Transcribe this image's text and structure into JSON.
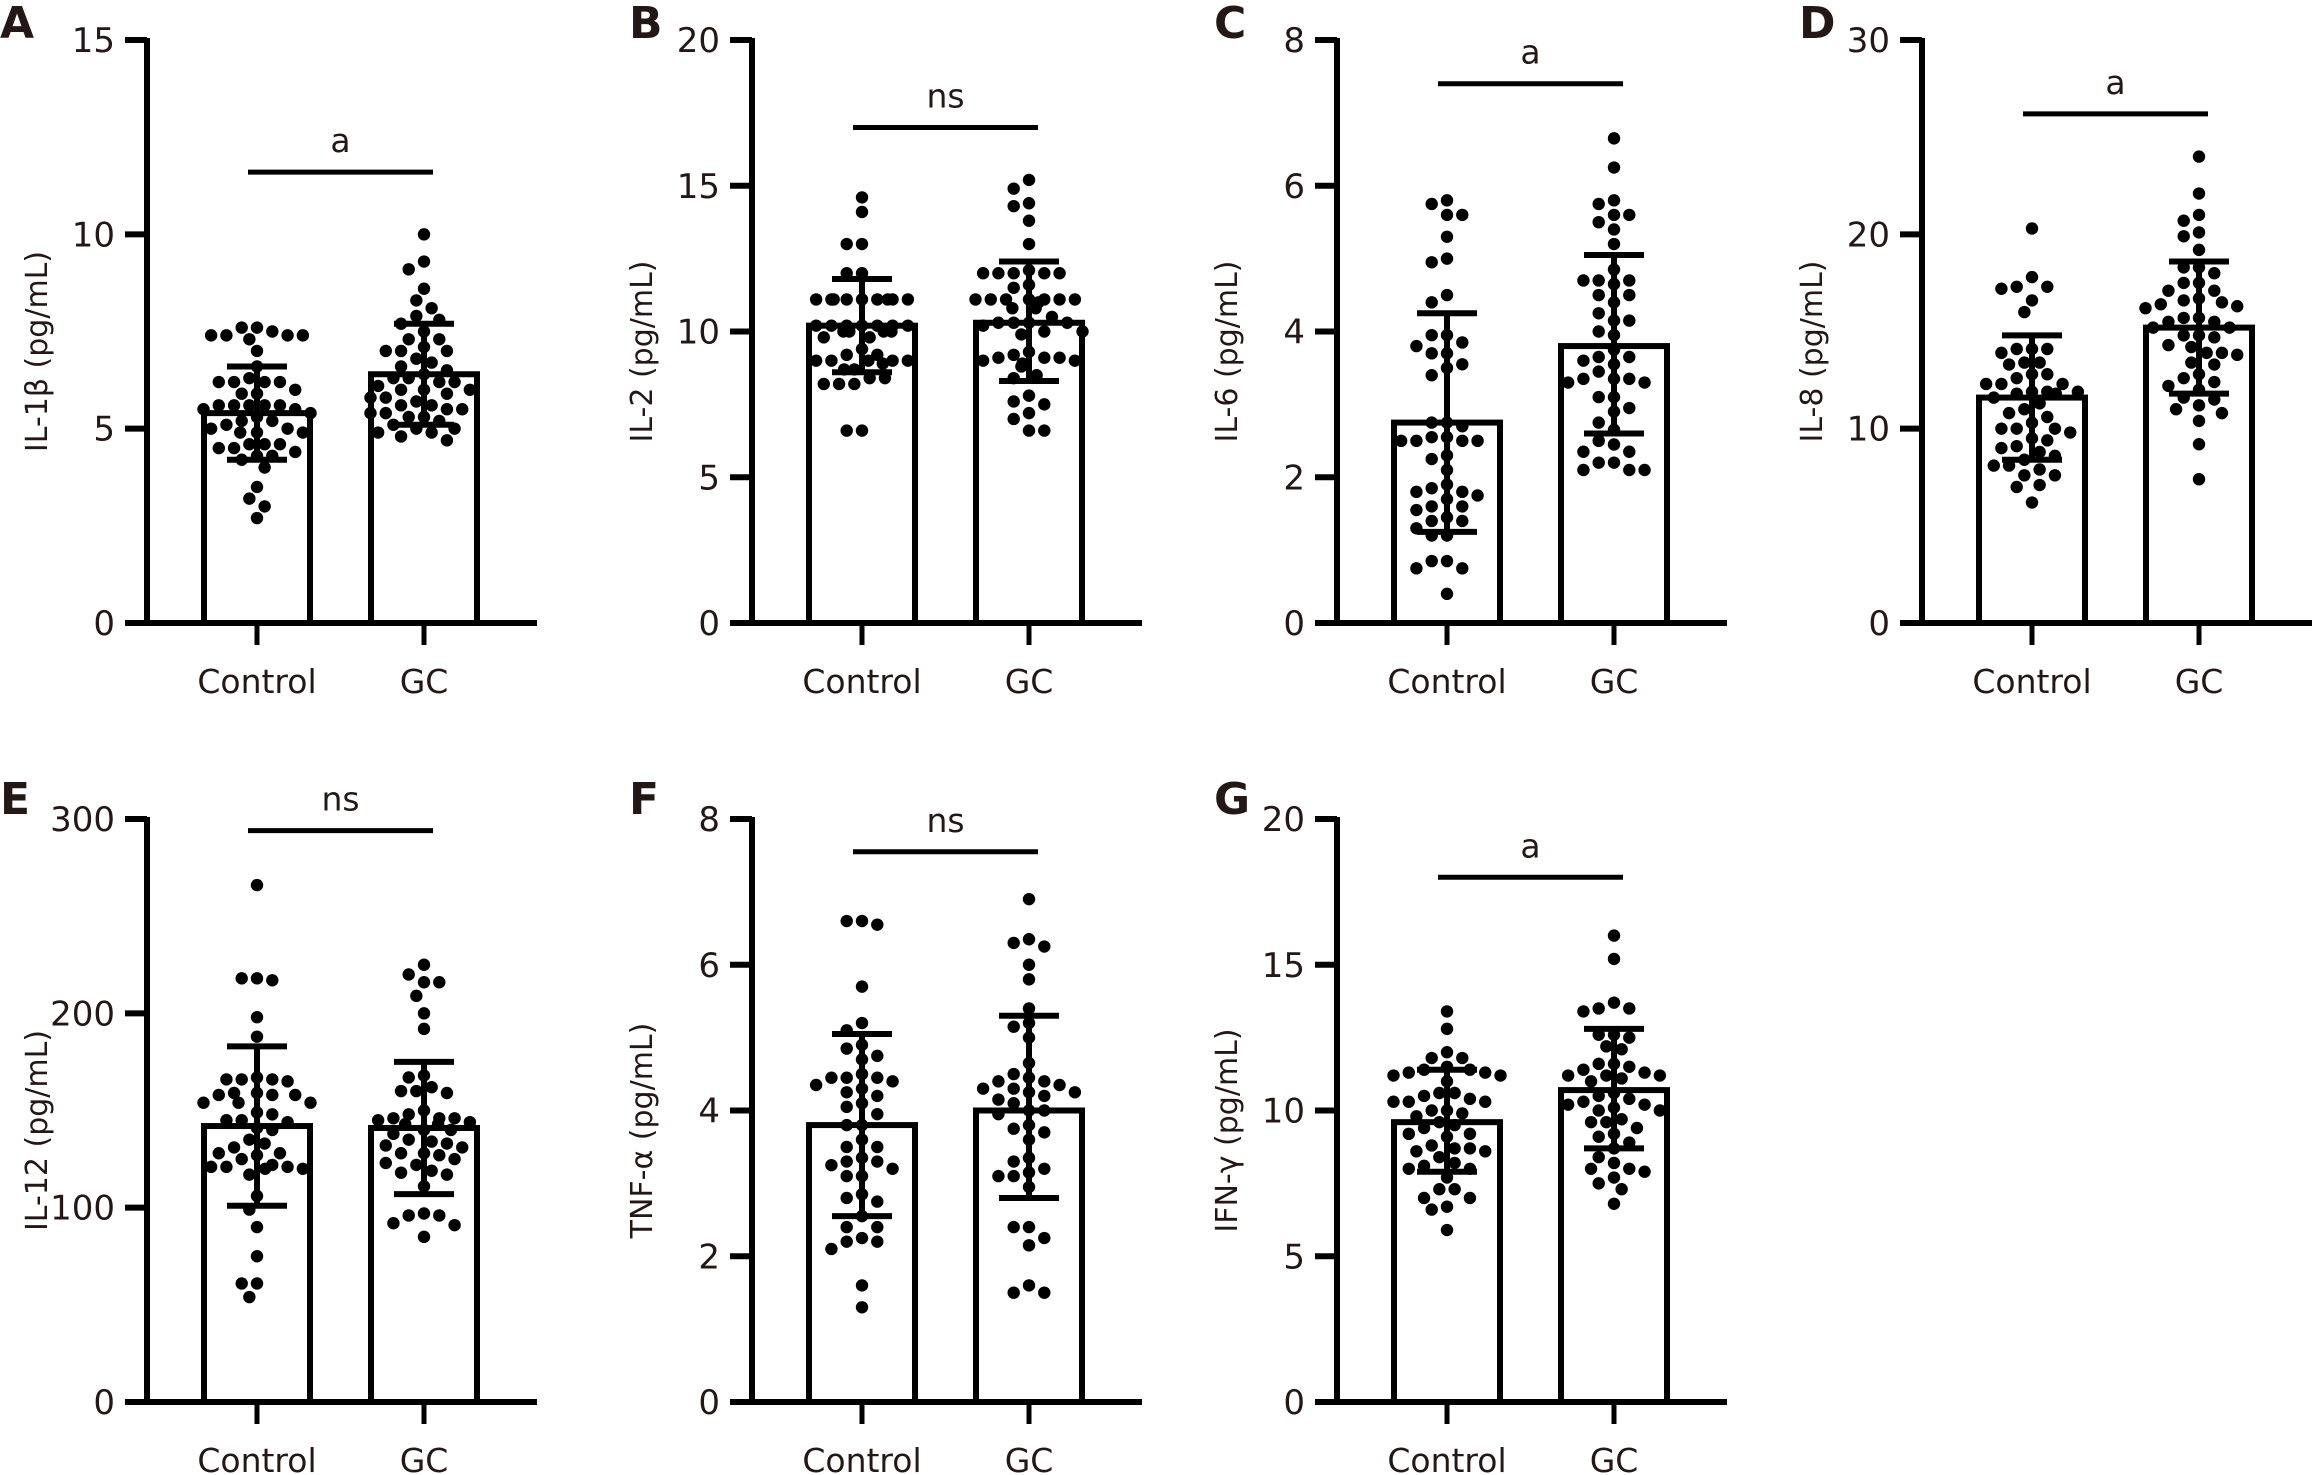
{
  "figure": {
    "panels_layout": "2 rows: A-D top, E-G bottom"
  },
  "chart_data": [
    {
      "panel": "A",
      "type": "bar",
      "subtype": "bar with scatter and SD error bars",
      "ylabel": "IL-1β (pg/mL)",
      "xlabel": "",
      "categories": [
        "Control",
        "GC"
      ],
      "ylim": [
        0,
        15
      ],
      "yticks": [
        "0",
        "5",
        "10",
        "15"
      ],
      "ytick_values": [
        0,
        5,
        10,
        15
      ],
      "significance": "a",
      "significance_level": 11.6,
      "series": [
        {
          "name": "Control",
          "mean": 5.4,
          "sd_low": 4.2,
          "sd_high": 6.6,
          "points": [
            7.6,
            7.5,
            7.6,
            7.4,
            7.4,
            7.3,
            7.4,
            7.4,
            7.0,
            6.6,
            6.2,
            6.3,
            6.2,
            6.2,
            6.2,
            5.9,
            6.0,
            5.9,
            5.6,
            5.6,
            5.6,
            5.5,
            5.6,
            5.5,
            5.4,
            5.6,
            5.3,
            5.2,
            5.1,
            4.9,
            5.0,
            4.9,
            5.0,
            4.9,
            5.2,
            4.6,
            4.6,
            4.5,
            4.5,
            4.4,
            4.6,
            4.3,
            4.2,
            4.3,
            4.0,
            3.5,
            3.2,
            3.0,
            2.7
          ]
        },
        {
          "name": "GC",
          "mean": 6.4,
          "sd_low": 5.1,
          "sd_high": 7.7,
          "points": [
            10.0,
            9.3,
            9.1,
            8.6,
            8.3,
            8.1,
            7.9,
            7.8,
            7.7,
            7.5,
            7.3,
            7.3,
            7.1,
            7.0,
            7.0,
            7.0,
            6.8,
            6.7,
            6.6,
            6.5,
            6.4,
            6.3,
            6.2,
            6.2,
            6.3,
            6.1,
            6.0,
            6.0,
            6.0,
            5.9,
            5.8,
            5.8,
            5.7,
            5.6,
            5.6,
            5.5,
            5.5,
            5.4,
            5.4,
            5.3,
            5.3,
            5.2,
            5.1,
            5.0,
            5.0,
            4.9,
            4.9,
            4.8,
            4.7
          ]
        }
      ]
    },
    {
      "panel": "B",
      "type": "bar",
      "subtype": "bar with scatter and SD error bars",
      "ylabel": "IL-2 (pg/mL)",
      "xlabel": "",
      "categories": [
        "Control",
        "GC"
      ],
      "ylim": [
        0,
        20
      ],
      "yticks": [
        "0",
        "5",
        "10",
        "15",
        "20"
      ],
      "ytick_values": [
        0,
        5,
        10,
        15,
        20
      ],
      "significance": "ns",
      "significance_level": 17.0,
      "series": [
        {
          "name": "Control",
          "mean": 10.2,
          "sd_low": 8.6,
          "sd_high": 11.8,
          "points": [
            14.6,
            14.1,
            13.0,
            13.0,
            12.0,
            12.0,
            11.1,
            11.1,
            11.1,
            11.1,
            11.1,
            11.1,
            11.1,
            11.1,
            11.1,
            10.2,
            10.2,
            10.2,
            10.2,
            10.2,
            10.2,
            10.0,
            10.0,
            10.0,
            10.0,
            10.2,
            9.8,
            9.8,
            9.4,
            9.2,
            9.2,
            9.0,
            9.0,
            9.0,
            9.0,
            9.0,
            8.9,
            8.7,
            8.7,
            8.4,
            8.4,
            8.2,
            8.2,
            8.2,
            6.6,
            6.6
          ]
        },
        {
          "name": "GC",
          "mean": 10.3,
          "sd_low": 8.3,
          "sd_high": 12.4,
          "points": [
            15.2,
            14.9,
            14.4,
            14.3,
            13.8,
            13.0,
            12.1,
            12.0,
            12.0,
            12.0,
            12.0,
            12.0,
            11.6,
            11.5,
            11.1,
            11.1,
            11.1,
            11.1,
            11.0,
            11.1,
            11.1,
            11.1,
            10.8,
            10.8,
            10.5,
            10.3,
            10.3,
            10.3,
            10.3,
            10.2,
            10.0,
            10.0,
            9.9,
            9.3,
            9.2,
            9.1,
            9.1,
            9.1,
            9.0,
            9.0,
            8.9,
            8.8,
            8.5,
            8.4,
            7.8,
            7.6,
            7.5,
            7.2,
            7.0,
            6.6,
            6.6
          ]
        }
      ]
    },
    {
      "panel": "C",
      "type": "bar",
      "subtype": "bar with scatter and SD error bars",
      "ylabel": "IL-6 (pg/mL)",
      "xlabel": "",
      "categories": [
        "Control",
        "GC"
      ],
      "ylim": [
        0,
        8
      ],
      "yticks": [
        "0",
        "2",
        "4",
        "6",
        "8"
      ],
      "ytick_values": [
        0,
        2,
        4,
        6,
        8
      ],
      "significance": "a",
      "significance_level": 7.4,
      "series": [
        {
          "name": "Control",
          "mean": 2.75,
          "sd_low": 1.25,
          "sd_high": 4.25,
          "points": [
            5.8,
            5.75,
            5.6,
            5.6,
            5.3,
            5.0,
            4.95,
            4.5,
            4.4,
            3.95,
            3.95,
            3.85,
            3.8,
            3.7,
            3.7,
            3.55,
            3.5,
            3.4,
            2.75,
            2.75,
            2.7,
            2.55,
            2.5,
            2.5,
            2.5,
            2.55,
            2.5,
            2.3,
            2.25,
            2.1,
            1.9,
            1.85,
            1.8,
            1.8,
            1.75,
            1.7,
            1.6,
            1.6,
            1.55,
            1.45,
            1.4,
            1.4,
            1.3,
            1.2,
            1.2,
            0.85,
            0.85,
            0.75,
            0.75,
            0.4
          ]
        },
        {
          "name": "GC",
          "mean": 3.8,
          "sd_low": 2.6,
          "sd_high": 5.05,
          "points": [
            6.65,
            6.25,
            5.8,
            5.75,
            5.6,
            5.6,
            5.5,
            5.4,
            5.2,
            4.85,
            4.7,
            4.7,
            4.7,
            4.65,
            4.5,
            4.5,
            4.4,
            4.25,
            4.15,
            4.15,
            4.0,
            3.95,
            3.75,
            3.65,
            3.65,
            3.6,
            3.55,
            3.45,
            3.35,
            3.35,
            3.35,
            3.3,
            3.3,
            3.1,
            3.1,
            2.95,
            2.9,
            2.75,
            2.65,
            2.5,
            2.45,
            2.35,
            2.35,
            2.2,
            2.2,
            2.1,
            2.1,
            2.1
          ]
        }
      ]
    },
    {
      "panel": "D",
      "type": "bar",
      "subtype": "bar with scatter and SD error bars",
      "ylabel": "IL-8 (pg/mL)",
      "xlabel": "",
      "categories": [
        "Control",
        "GC"
      ],
      "ylim": [
        0,
        30
      ],
      "yticks": [
        "0",
        "10",
        "20",
        "30"
      ],
      "ytick_values": [
        0,
        10,
        20,
        30
      ],
      "significance": "a",
      "significance_level": 26.2,
      "series": [
        {
          "name": "Control",
          "mean": 11.6,
          "sd_low": 8.4,
          "sd_high": 14.8,
          "points": [
            20.3,
            17.8,
            17.3,
            17.2,
            17.3,
            16.6,
            16.0,
            14.1,
            14.1,
            14.1,
            13.9,
            13.4,
            13.3,
            13.4,
            12.8,
            12.8,
            12.6,
            12.3,
            12.3,
            12.3,
            11.9,
            11.9,
            11.9,
            11.8,
            11.8,
            11.6,
            11.3,
            11.0,
            10.8,
            10.6,
            10.3,
            10.0,
            10.0,
            10.0,
            9.8,
            9.5,
            9.4,
            9.1,
            9.0,
            8.8,
            8.6,
            8.4,
            8.1,
            8.1,
            7.9,
            7.6,
            7.6,
            7.1,
            7.0,
            6.2
          ]
        },
        {
          "name": "GC",
          "mean": 15.2,
          "sd_low": 11.8,
          "sd_high": 18.6,
          "points": [
            24.0,
            22.1,
            21.0,
            20.7,
            20.1,
            19.9,
            19.2,
            18.3,
            18.3,
            18.0,
            17.5,
            17.5,
            17.1,
            17.1,
            16.7,
            16.6,
            16.5,
            16.4,
            16.3,
            16.2,
            15.7,
            15.7,
            15.5,
            15.5,
            15.2,
            15.2,
            14.8,
            14.8,
            14.7,
            14.3,
            14.2,
            13.9,
            13.9,
            13.8,
            13.4,
            13.3,
            12.8,
            12.6,
            12.4,
            12.2,
            12.0,
            11.6,
            11.5,
            11.2,
            11.0,
            10.8,
            10.4,
            9.2,
            7.4
          ]
        }
      ]
    },
    {
      "panel": "E",
      "type": "bar",
      "subtype": "bar with scatter and SD error bars",
      "ylabel": "IL-12 (pg/mL)",
      "xlabel": "",
      "categories": [
        "Control",
        "GC"
      ],
      "ylim": [
        0,
        300
      ],
      "yticks": [
        "0",
        "100",
        "200",
        "300"
      ],
      "ytick_values": [
        0,
        100,
        200,
        300
      ],
      "significance": "ns",
      "significance_level": 294,
      "series": [
        {
          "name": "Control",
          "mean": 142,
          "sd_low": 101,
          "sd_high": 183,
          "points": [
            266,
            218,
            217,
            218,
            198,
            188,
            166,
            166,
            167,
            166,
            165,
            158,
            158,
            159,
            159,
            158,
            154,
            154,
            154,
            149,
            148,
            145,
            145,
            144,
            141,
            140,
            135,
            133,
            131,
            128,
            127,
            128,
            125,
            122,
            121,
            120,
            121,
            121,
            120,
            117,
            106,
            99,
            90,
            75,
            61,
            61,
            54
          ]
        },
        {
          "name": "GC",
          "mean": 141,
          "sd_low": 107,
          "sd_high": 175,
          "points": [
            225,
            220,
            216,
            216,
            209,
            200,
            192,
            168,
            167,
            162,
            160,
            159,
            160,
            150,
            148,
            146,
            146,
            145,
            146,
            143,
            144,
            143,
            140,
            140,
            138,
            135,
            134,
            133,
            132,
            131,
            128,
            128,
            127,
            125,
            123,
            122,
            119,
            118,
            117,
            111,
            97,
            96,
            96,
            92,
            91,
            85
          ]
        }
      ]
    },
    {
      "panel": "F",
      "type": "bar",
      "subtype": "bar with scatter and SD error bars",
      "ylabel": "TNF-α (pg/mL)",
      "xlabel": "",
      "categories": [
        "Control",
        "GC"
      ],
      "ylim": [
        0,
        8
      ],
      "yticks": [
        "0",
        "2",
        "4",
        "6",
        "8"
      ],
      "ytick_values": [
        0,
        2,
        4,
        6,
        8
      ],
      "significance": "ns",
      "significance_level": 7.55,
      "series": [
        {
          "name": "Control",
          "mean": 3.8,
          "sd_low": 2.55,
          "sd_high": 5.05,
          "points": [
            6.6,
            6.55,
            6.6,
            5.7,
            5.2,
            5.1,
            4.9,
            4.85,
            4.75,
            4.7,
            4.5,
            4.45,
            4.45,
            4.45,
            4.4,
            4.35,
            4.3,
            4.25,
            4.2,
            4.1,
            4.05,
            3.95,
            3.8,
            3.8,
            3.6,
            3.5,
            3.5,
            3.35,
            3.3,
            3.3,
            3.25,
            3.2,
            3.1,
            3.1,
            2.85,
            2.8,
            2.75,
            2.55,
            2.4,
            2.4,
            2.25,
            2.2,
            2.2,
            2.1,
            1.6,
            1.3
          ]
        },
        {
          "name": "GC",
          "mean": 4.0,
          "sd_low": 2.8,
          "sd_high": 5.3,
          "points": [
            6.9,
            6.35,
            6.3,
            6.25,
            6.0,
            5.8,
            5.4,
            5.2,
            5.15,
            5.0,
            4.65,
            4.5,
            4.45,
            4.4,
            4.4,
            4.35,
            4.3,
            4.3,
            4.25,
            4.25,
            4.2,
            4.15,
            4.1,
            4.0,
            4.0,
            3.95,
            3.8,
            3.75,
            3.7,
            3.6,
            3.35,
            3.3,
            3.2,
            3.15,
            3.1,
            3.1,
            2.95,
            2.4,
            2.4,
            2.25,
            2.15,
            1.6,
            1.5,
            1.5
          ]
        }
      ]
    },
    {
      "panel": "G",
      "type": "bar",
      "subtype": "bar with scatter and SD error bars",
      "ylabel": "IFN-γ (pg/mL)",
      "xlabel": "",
      "categories": [
        "Control",
        "GC"
      ],
      "ylim": [
        0,
        20
      ],
      "yticks": [
        "0",
        "5",
        "10",
        "15",
        "20"
      ],
      "ytick_values": [
        0,
        5,
        10,
        15,
        20
      ],
      "significance": "a",
      "significance_level": 18.0,
      "series": [
        {
          "name": "Control",
          "mean": 9.6,
          "sd_low": 7.9,
          "sd_high": 11.4,
          "points": [
            13.4,
            12.8,
            12.0,
            11.8,
            11.8,
            11.5,
            11.4,
            11.4,
            11.3,
            11.3,
            11.2,
            11.2,
            11.0,
            10.6,
            10.6,
            10.5,
            10.4,
            10.3,
            10.3,
            10.3,
            10.0,
            10.0,
            9.9,
            9.8,
            9.5,
            9.6,
            9.4,
            9.2,
            9.2,
            9.1,
            8.8,
            8.7,
            8.7,
            8.6,
            8.6,
            8.4,
            8.2,
            8.1,
            8.0,
            8.0,
            7.7,
            7.3,
            7.3,
            7.0,
            7.0,
            6.7,
            6.6,
            5.9
          ]
        },
        {
          "name": "GC",
          "mean": 10.7,
          "sd_low": 8.7,
          "sd_high": 12.8,
          "points": [
            16.0,
            15.2,
            13.7,
            13.5,
            13.4,
            13.5,
            12.6,
            12.6,
            12.5,
            12.1,
            12.2,
            11.6,
            11.6,
            11.5,
            11.4,
            11.3,
            11.2,
            11.2,
            11.2,
            11.1,
            11.0,
            10.6,
            10.5,
            10.4,
            10.3,
            10.2,
            10.2,
            10.1,
            10.0,
            10.0,
            9.7,
            9.6,
            9.6,
            9.4,
            9.2,
            9.1,
            8.9,
            8.7,
            8.4,
            8.2,
            8.0,
            8.0,
            7.9,
            7.7,
            7.5,
            7.3,
            6.8
          ]
        }
      ]
    }
  ],
  "panel_labels": [
    "A",
    "B",
    "C",
    "D",
    "E",
    "F",
    "G"
  ]
}
